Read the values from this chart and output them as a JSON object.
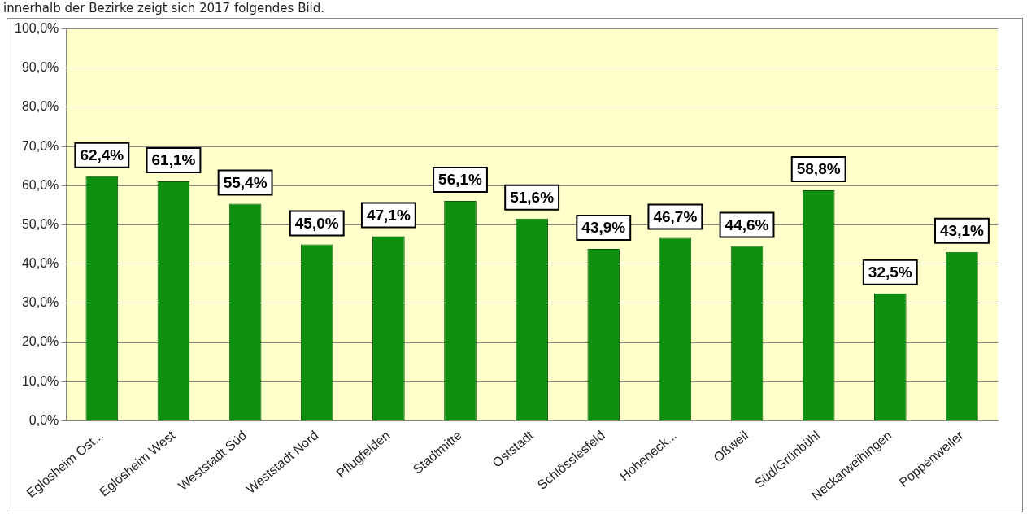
{
  "chart_data": {
    "type": "bar",
    "annotations": [
      "innerhalb der Bezirke zeigt sich 2017 folgendes Bild."
    ],
    "categories": [
      "Eglosheim Ost...",
      "Eglosheim West",
      "Weststadt Süd",
      "Weststadt Nord",
      "Pflugfelden",
      "Stadtmitte",
      "Oststadt",
      "Schlösslesfeld",
      "Hoheneck...",
      "Oßweil",
      "Süd/Grünbühl",
      "Neckarweihingen",
      "Poppenweiler"
    ],
    "values": [
      62.4,
      61.1,
      55.4,
      45.0,
      47.1,
      56.1,
      51.6,
      43.9,
      46.7,
      44.6,
      58.8,
      32.5,
      43.1
    ],
    "value_labels": [
      "62,4%",
      "61,1%",
      "55,4%",
      "45,0%",
      "47,1%",
      "56,1%",
      "51,6%",
      "43,9%",
      "46,7%",
      "44,6%",
      "58,8%",
      "32,5%",
      "43,1%"
    ],
    "color": "#0f8f0f",
    "ylim": [
      0,
      100
    ],
    "yticks": [
      {
        "value": 0,
        "label": "0,0%"
      },
      {
        "value": 10,
        "label": "10,0%"
      },
      {
        "value": 20,
        "label": "20,0%"
      },
      {
        "value": 30,
        "label": "30,0%"
      },
      {
        "value": 40,
        "label": "40,0%"
      },
      {
        "value": 50,
        "label": "50,0%"
      },
      {
        "value": 60,
        "label": "60,0%"
      },
      {
        "value": 70,
        "label": "70,0%"
      },
      {
        "value": 80,
        "label": "80,0%"
      },
      {
        "value": 90,
        "label": "90,0%"
      },
      {
        "value": 100,
        "label": "100,0%"
      }
    ],
    "grid": "y",
    "legend": false
  }
}
